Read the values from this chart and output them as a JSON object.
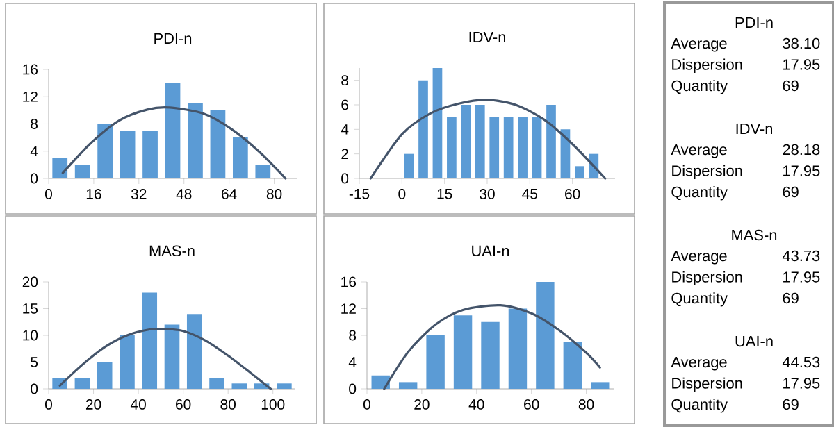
{
  "chart_data": [
    {
      "type": "bar",
      "title": "PDI-n",
      "xlim": [
        0,
        88
      ],
      "xticks": [
        0,
        16,
        32,
        48,
        64,
        80
      ],
      "ylim": [
        0,
        16
      ],
      "yticks": [
        0,
        4,
        8,
        12,
        16
      ],
      "series": [
        {
          "type": "bar",
          "color": "#5b9bd5",
          "x": [
            4,
            12,
            20,
            28,
            36,
            44,
            52,
            60,
            68,
            76
          ],
          "values": [
            3,
            2,
            8,
            7,
            7,
            14,
            11,
            10,
            6,
            2
          ]
        },
        {
          "type": "line",
          "color": "#44546a",
          "x": [
            5,
            15,
            25,
            35,
            43,
            55,
            65,
            75,
            84
          ],
          "values": [
            0.8,
            5.2,
            8.5,
            10.1,
            10.4,
            9.5,
            7.2,
            3.8,
            0
          ]
        }
      ]
    },
    {
      "type": "bar",
      "title": "IDV-n",
      "xlim": [
        -15,
        75
      ],
      "xticks": [
        -15,
        0,
        15,
        30,
        45,
        60
      ],
      "ylim": [
        0,
        9
      ],
      "yticks": [
        0,
        2,
        4,
        6,
        8
      ],
      "series": [
        {
          "type": "bar",
          "color": "#5b9bd5",
          "x": [
            2.5,
            7.5,
            12.5,
            17.5,
            22.5,
            27.5,
            32.5,
            37.5,
            42.5,
            47.5,
            52.5,
            57.5,
            62.5,
            67.5
          ],
          "values": [
            2,
            8,
            9,
            5,
            6,
            6,
            5,
            5,
            5,
            5,
            6,
            4,
            1,
            2
          ]
        },
        {
          "type": "line",
          "color": "#44546a",
          "x": [
            -11,
            0,
            10,
            20,
            30,
            40,
            50,
            60,
            71.5
          ],
          "values": [
            0,
            3.6,
            5.3,
            6.1,
            6.4,
            6.0,
            4.8,
            2.8,
            0
          ]
        }
      ]
    },
    {
      "type": "bar",
      "title": "MAS-n",
      "xlim": [
        0,
        110
      ],
      "xticks": [
        0,
        20,
        40,
        60,
        80,
        100
      ],
      "ylim": [
        0,
        20
      ],
      "yticks": [
        0,
        5,
        10,
        15,
        20
      ],
      "series": [
        {
          "type": "bar",
          "color": "#5b9bd5",
          "x": [
            5,
            15,
            25,
            35,
            45,
            55,
            65,
            75,
            85,
            95,
            105
          ],
          "values": [
            2,
            2,
            5,
            10,
            18,
            12,
            14,
            2,
            1,
            1,
            1
          ]
        },
        {
          "type": "line",
          "color": "#44546a",
          "x": [
            5,
            15,
            25,
            35,
            45,
            52,
            60,
            70,
            80,
            90,
            99
          ],
          "values": [
            0.6,
            4.5,
            7.8,
            10,
            11.1,
            11.2,
            10.8,
            9,
            6.2,
            3,
            0
          ]
        }
      ]
    },
    {
      "type": "bar",
      "title": "UAI-n",
      "xlim": [
        0,
        90
      ],
      "xticks": [
        0,
        20,
        40,
        60,
        80
      ],
      "ylim": [
        0,
        16
      ],
      "yticks": [
        0,
        4,
        8,
        12,
        16
      ],
      "series": [
        {
          "type": "bar",
          "color": "#5b9bd5",
          "x": [
            5,
            15,
            25,
            35,
            45,
            55,
            65,
            75,
            85
          ],
          "values": [
            2,
            1,
            8,
            11,
            10,
            12,
            16,
            7,
            1
          ]
        },
        {
          "type": "line",
          "color": "#44546a",
          "x": [
            6.3,
            15,
            25,
            35,
            48.7,
            60,
            70,
            80,
            85
          ],
          "values": [
            0,
            5.5,
            9.6,
            11.8,
            12.5,
            11.3,
            8.8,
            5.4,
            3.2
          ]
        }
      ]
    },
    {
      "type": "other",
      "annotations": [
        "PDI-n",
        "Average",
        "38.10",
        "Dispersion",
        "17.95",
        "Quantity",
        "69",
        "IDV-n",
        "Average",
        "28.18",
        "Dispersion",
        "17.95",
        "Quantity",
        "69",
        "MAS-n",
        "Average",
        "43.73",
        "Dispersion",
        "17.95",
        "Quantity",
        "69",
        "UAI-n",
        "Average",
        "44.53",
        "Dispersion",
        "17.95",
        "Quantity",
        "69"
      ]
    }
  ]
}
